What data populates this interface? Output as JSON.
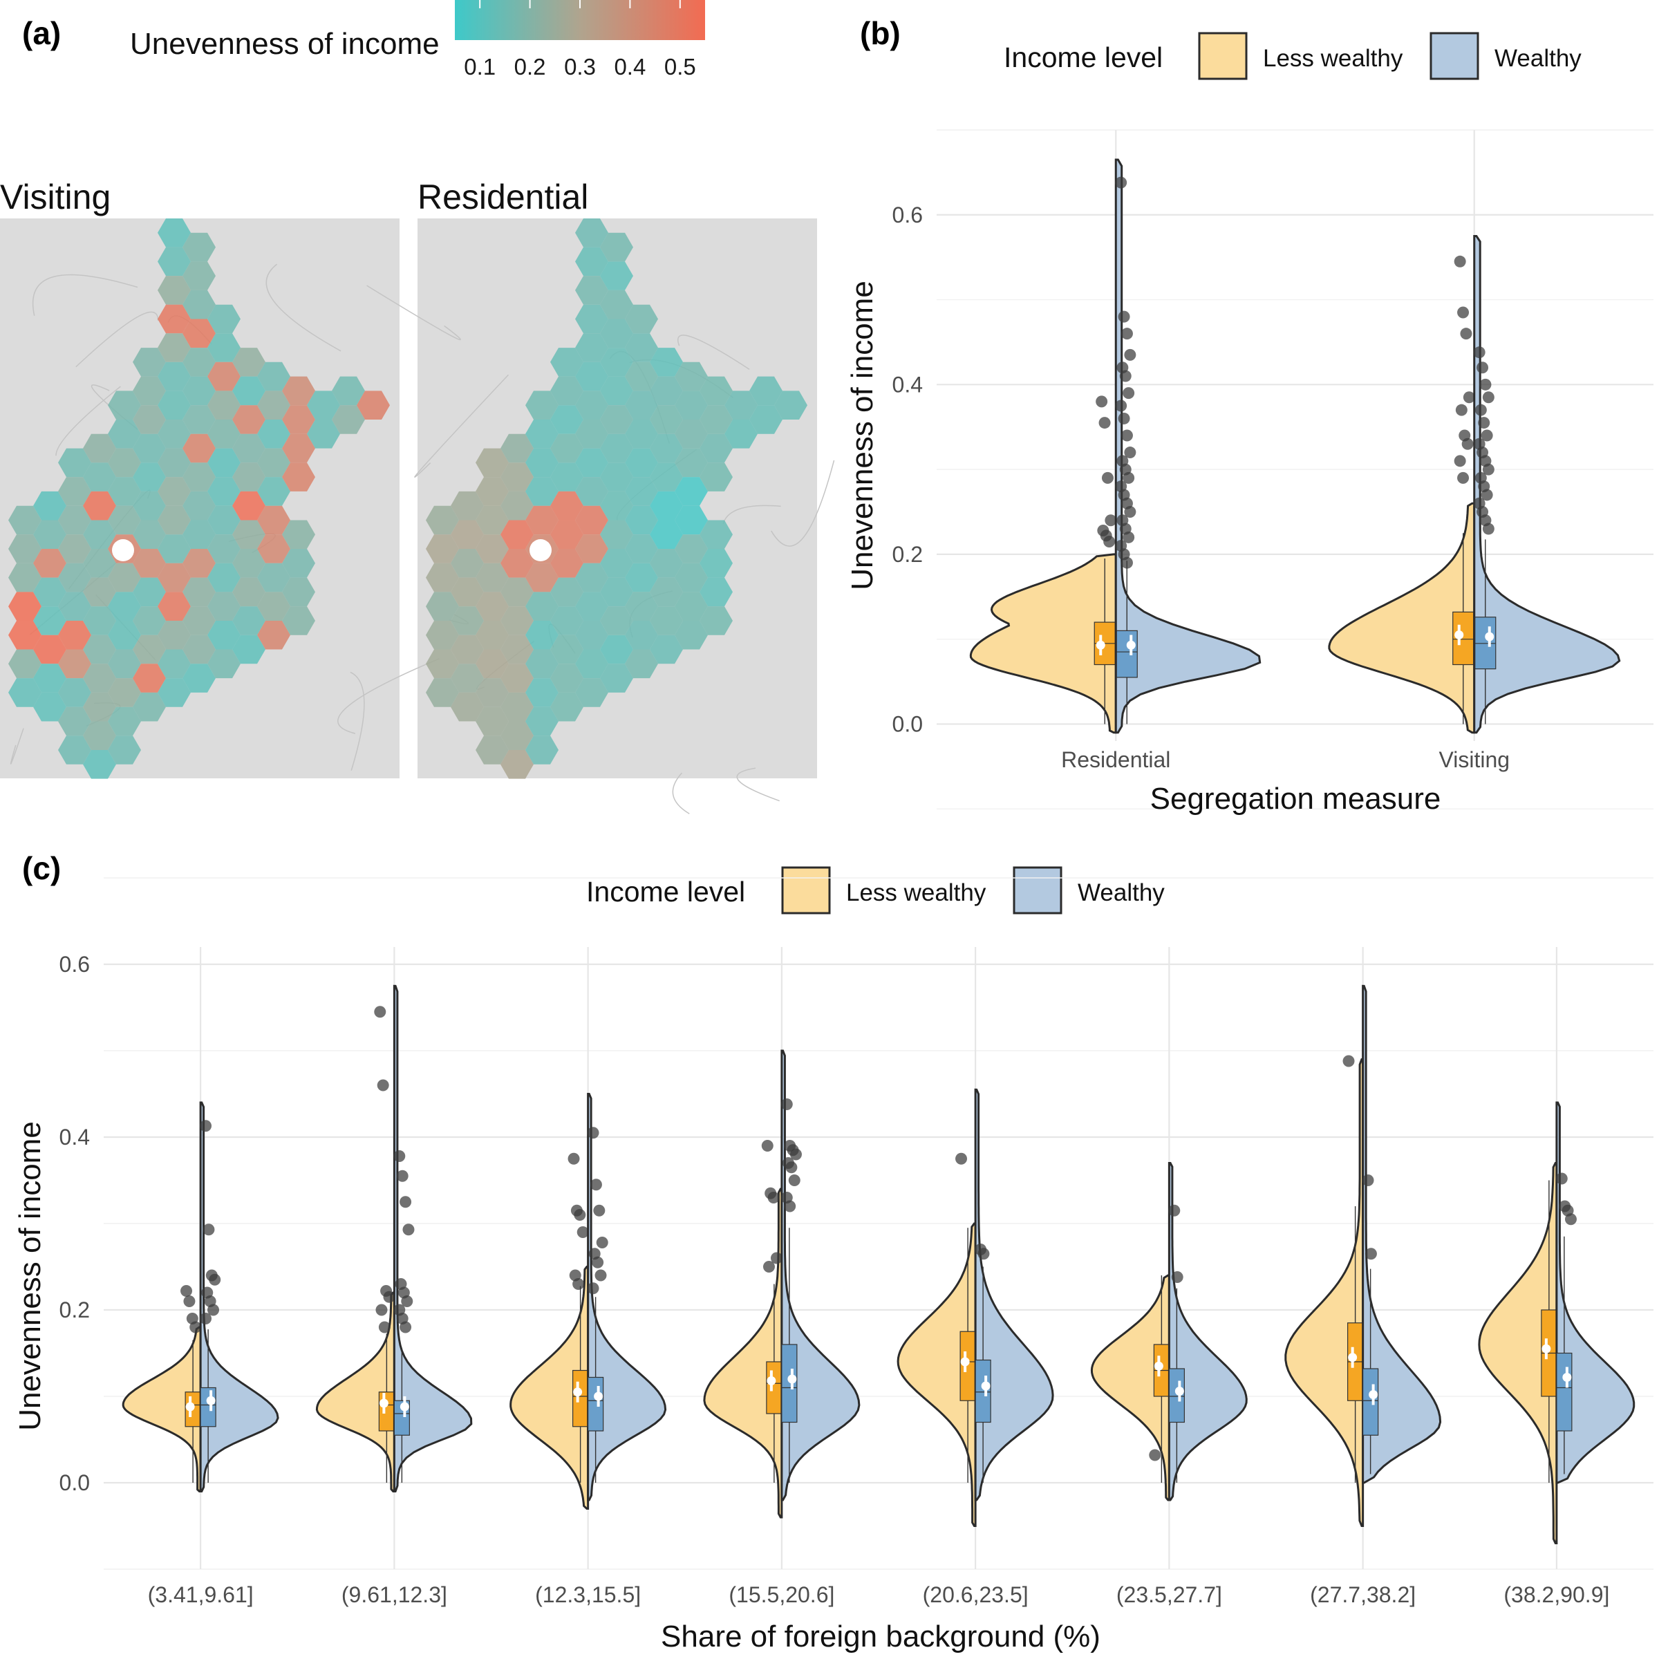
{
  "panels": {
    "a": {
      "letter": "(a)",
      "colorbar": {
        "title": "Unevenness of income",
        "ticks": [
          "0.1",
          "0.2",
          "0.3",
          "0.4",
          "0.5"
        ],
        "low_color": "#3ec9c9",
        "high_color": "#f26b52"
      },
      "maps": [
        {
          "title": "Visiting"
        },
        {
          "title": "Residential"
        }
      ]
    },
    "b": {
      "letter": "(b)",
      "legend": {
        "title": "Income level",
        "items": [
          "Less wealthy",
          "Wealthy"
        ]
      },
      "xlabel": "Segregation measure",
      "ylabel": "Unevenness of income"
    },
    "c": {
      "letter": "(c)",
      "legend": {
        "title": "Income level",
        "items": [
          "Less wealthy",
          "Wealthy"
        ]
      },
      "xlabel": "Share of foreign background (%)",
      "ylabel": "Unevenness of income"
    }
  },
  "colors": {
    "less_wealthy_fill": "#fbdc9c",
    "wealthy_fill": "#b3c9e0",
    "less_wealthy_box": "#f5a623",
    "wealthy_box": "#6a9fcb",
    "outline": "#2b2b2b",
    "map_background": "#dcdcdc"
  },
  "chart_data": [
    {
      "type": "violin",
      "panel": "b",
      "categories": [
        "Residential",
        "Visiting"
      ],
      "ylim": [
        -0.02,
        0.7
      ],
      "yticks": [
        "0.0",
        "0.2",
        "0.4",
        "0.6"
      ],
      "ytick_values": [
        0.0,
        0.2,
        0.4,
        0.6
      ],
      "series": [
        {
          "name": "Less wealthy",
          "groups": [
            {
              "min": -0.01,
              "max": 0.2,
              "q1": 0.07,
              "median": 0.095,
              "q3": 0.12,
              "mean": 0.093,
              "peak": 0.08,
              "sd_lo": 0.025,
              "sd_hi": 0.045,
              "peak2": 0.135,
              "outliers": [
                0.38,
                0.355,
                0.29,
                0.24,
                0.228,
                0.222,
                0.215
              ]
            },
            {
              "min": -0.01,
              "max": 0.26,
              "q1": 0.07,
              "median": 0.1,
              "q3": 0.132,
              "mean": 0.105,
              "peak": 0.09,
              "sd_lo": 0.03,
              "sd_hi": 0.05,
              "outliers": [
                0.545,
                0.485,
                0.46,
                0.385,
                0.37,
                0.34,
                0.33,
                0.31,
                0.29
              ]
            }
          ]
        },
        {
          "name": "Wealthy",
          "groups": [
            {
              "min": -0.01,
              "max": 0.665,
              "q1": 0.055,
              "median": 0.085,
              "q3": 0.11,
              "mean": 0.093,
              "peak": 0.075,
              "sd_lo": 0.02,
              "sd_hi": 0.03,
              "outliers": [
                0.638,
                0.48,
                0.46,
                0.435,
                0.42,
                0.41,
                0.39,
                0.375,
                0.36,
                0.34,
                0.32,
                0.31,
                0.3,
                0.29,
                0.28,
                0.27,
                0.26,
                0.25,
                0.24,
                0.23,
                0.22,
                0.21,
                0.2,
                0.19
              ]
            },
            {
              "min": -0.01,
              "max": 0.575,
              "q1": 0.065,
              "median": 0.095,
              "q3": 0.126,
              "mean": 0.103,
              "peak": 0.075,
              "sd_lo": 0.022,
              "sd_hi": 0.04,
              "outliers": [
                0.438,
                0.42,
                0.4,
                0.385,
                0.37,
                0.355,
                0.34,
                0.33,
                0.32,
                0.31,
                0.3,
                0.29,
                0.28,
                0.27,
                0.26,
                0.25,
                0.24,
                0.23
              ]
            }
          ]
        }
      ],
      "xlabel": "Segregation measure",
      "ylabel": "Unevenness of income"
    },
    {
      "type": "violin",
      "panel": "c",
      "categories": [
        "(3.41,9.61]",
        "(9.61,12.3]",
        "(12.3,15.5]",
        "(15.5,20.6]",
        "(20.6,23.5]",
        "(23.5,27.7]",
        "(27.7,38.2]",
        "(38.2,90.9]"
      ],
      "ylim": [
        -0.1,
        0.62
      ],
      "yticks": [
        "0.0",
        "0.2",
        "0.4",
        "0.6"
      ],
      "ytick_values": [
        0.0,
        0.2,
        0.4,
        0.6
      ],
      "series": [
        {
          "name": "Less wealthy",
          "groups": [
            {
              "min": -0.01,
              "max": 0.18,
              "q1": 0.065,
              "median": 0.09,
              "q3": 0.105,
              "mean": 0.088,
              "peak": 0.09,
              "sd_lo": 0.022,
              "sd_hi": 0.03,
              "outliers": [
                0.222,
                0.21,
                0.19,
                0.18
              ]
            },
            {
              "min": -0.01,
              "max": 0.22,
              "q1": 0.06,
              "median": 0.09,
              "q3": 0.105,
              "mean": 0.092,
              "peak": 0.085,
              "sd_lo": 0.022,
              "sd_hi": 0.035,
              "outliers": [
                0.545,
                0.46,
                0.222,
                0.215,
                0.2,
                0.18
              ]
            },
            {
              "min": -0.03,
              "max": 0.25,
              "q1": 0.065,
              "median": 0.1,
              "q3": 0.13,
              "mean": 0.105,
              "peak": 0.09,
              "sd_lo": 0.04,
              "sd_hi": 0.045,
              "outliers": [
                0.375,
                0.315,
                0.31,
                0.29,
                0.24,
                0.23
              ]
            },
            {
              "min": -0.04,
              "max": 0.34,
              "q1": 0.08,
              "median": 0.115,
              "q3": 0.14,
              "mean": 0.118,
              "peak": 0.095,
              "sd_lo": 0.03,
              "sd_hi": 0.05,
              "outliers": [
                0.39,
                0.335,
                0.33,
                0.26,
                0.25
              ]
            },
            {
              "min": -0.05,
              "max": 0.3,
              "q1": 0.095,
              "median": 0.14,
              "q3": 0.175,
              "mean": 0.14,
              "peak": 0.14,
              "sd_lo": 0.045,
              "sd_hi": 0.05,
              "outliers": [
                0.375
              ]
            },
            {
              "min": -0.02,
              "max": 0.24,
              "q1": 0.1,
              "median": 0.13,
              "q3": 0.16,
              "mean": 0.135,
              "peak": 0.13,
              "sd_lo": 0.04,
              "sd_hi": 0.04,
              "outliers": [
                0.032
              ]
            },
            {
              "min": -0.05,
              "max": 0.49,
              "q1": 0.095,
              "median": 0.14,
              "q3": 0.185,
              "mean": 0.145,
              "peak": 0.145,
              "sd_lo": 0.055,
              "sd_hi": 0.055,
              "outliers": [
                0.488
              ]
            },
            {
              "min": -0.07,
              "max": 0.37,
              "q1": 0.1,
              "median": 0.15,
              "q3": 0.2,
              "mean": 0.155,
              "peak": 0.16,
              "sd_lo": 0.055,
              "sd_hi": 0.06,
              "outliers": []
            }
          ]
        },
        {
          "name": "Wealthy",
          "groups": [
            {
              "min": -0.01,
              "max": 0.44,
              "q1": 0.065,
              "median": 0.09,
              "q3": 0.11,
              "mean": 0.095,
              "peak": 0.075,
              "sd_lo": 0.022,
              "sd_hi": 0.035,
              "outliers": [
                0.413,
                0.293,
                0.24,
                0.235,
                0.22,
                0.21,
                0.2,
                0.19
              ]
            },
            {
              "min": -0.01,
              "max": 0.575,
              "q1": 0.055,
              "median": 0.08,
              "q3": 0.095,
              "mean": 0.088,
              "peak": 0.07,
              "sd_lo": 0.02,
              "sd_hi": 0.035,
              "outliers": [
                0.378,
                0.355,
                0.325,
                0.293,
                0.23,
                0.22,
                0.21,
                0.2,
                0.19,
                0.18
              ]
            },
            {
              "min": -0.02,
              "max": 0.45,
              "q1": 0.06,
              "median": 0.095,
              "q3": 0.122,
              "mean": 0.1,
              "peak": 0.085,
              "sd_lo": 0.03,
              "sd_hi": 0.045,
              "outliers": [
                0.405,
                0.345,
                0.315,
                0.278,
                0.265,
                0.255,
                0.24,
                0.225
              ]
            },
            {
              "min": -0.02,
              "max": 0.5,
              "q1": 0.07,
              "median": 0.11,
              "q3": 0.16,
              "mean": 0.12,
              "peak": 0.09,
              "sd_lo": 0.035,
              "sd_hi": 0.05,
              "outliers": [
                0.438,
                0.39,
                0.385,
                0.38,
                0.37,
                0.365,
                0.35,
                0.33,
                0.32
              ]
            },
            {
              "min": -0.02,
              "max": 0.455,
              "q1": 0.07,
              "median": 0.105,
              "q3": 0.142,
              "mean": 0.112,
              "peak": 0.1,
              "sd_lo": 0.04,
              "sd_hi": 0.06,
              "outliers": [
                0.27,
                0.265
              ]
            },
            {
              "min": -0.02,
              "max": 0.37,
              "q1": 0.07,
              "median": 0.1,
              "q3": 0.132,
              "mean": 0.106,
              "peak": 0.095,
              "sd_lo": 0.035,
              "sd_hi": 0.05,
              "outliers": [
                0.315,
                0.238
              ]
            },
            {
              "min": 0.0,
              "max": 0.575,
              "q1": 0.055,
              "median": 0.095,
              "q3": 0.132,
              "mean": 0.102,
              "peak": 0.07,
              "sd_lo": 0.03,
              "sd_hi": 0.06,
              "outliers": [
                0.35,
                0.265
              ]
            },
            {
              "min": 0.0,
              "max": 0.44,
              "q1": 0.06,
              "median": 0.11,
              "q3": 0.15,
              "mean": 0.122,
              "peak": 0.09,
              "sd_lo": 0.04,
              "sd_hi": 0.05,
              "outliers": [
                0.352,
                0.32,
                0.315,
                0.305
              ]
            }
          ]
        }
      ],
      "xlabel": "Share of foreign background (%)",
      "ylabel": "Unevenness of income"
    }
  ]
}
